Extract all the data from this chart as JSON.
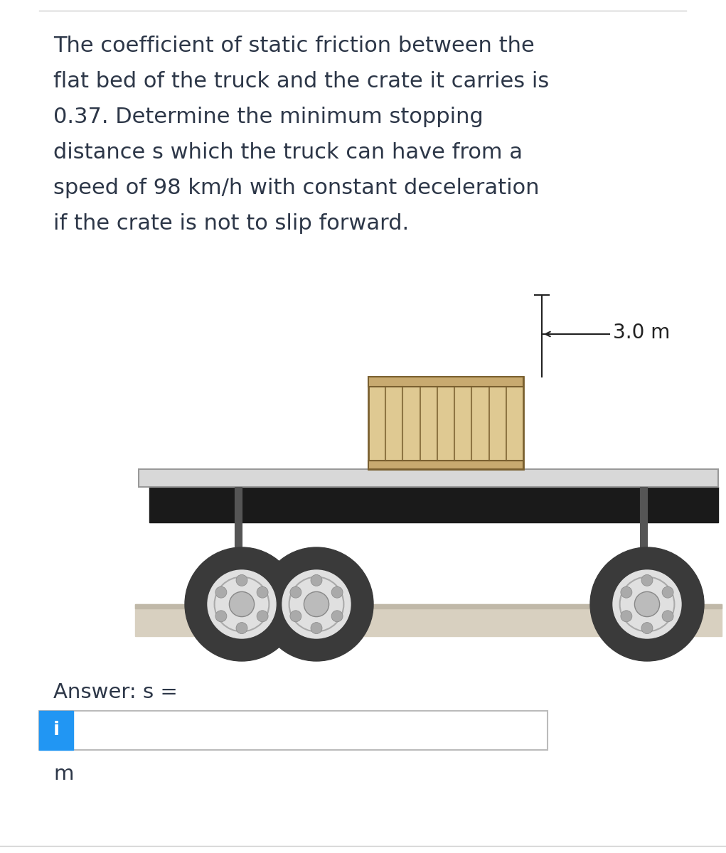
{
  "bg_color": "#ffffff",
  "text_color": "#2d3748",
  "problem_text_lines": [
    "The coefficient of static friction between the",
    "flat bed of the truck and the crate it carries is",
    "0.37. Determine the minimum stopping",
    "distance s which the truck can have from a",
    "speed of 98 km/h with constant deceleration",
    "if the crate is not to slip forward."
  ],
  "dimension_label": "3.0 m",
  "answer_label": "Answer: s =",
  "unit_label": "m",
  "info_button_color": "#2196F3",
  "info_button_text": "i",
  "truck_bed_color": "#d8d8d8",
  "crate_fill_color": "#dfc992",
  "crate_edge_color": "#7a6030",
  "crate_dark_color": "#c8aa70",
  "wheel_tire_color": "#3a3a3a",
  "wheel_rim_color": "#e0e0e0",
  "wheel_spoke_color": "#aaaaaa",
  "wheel_hub_color": "#bbbbbb",
  "road_fill_color": "#d8d0c0",
  "road_top_color": "#c0b8a8",
  "undercarriage_color": "#1a1a1a",
  "dim_line_color": "#222222",
  "border_color": "#cccccc"
}
